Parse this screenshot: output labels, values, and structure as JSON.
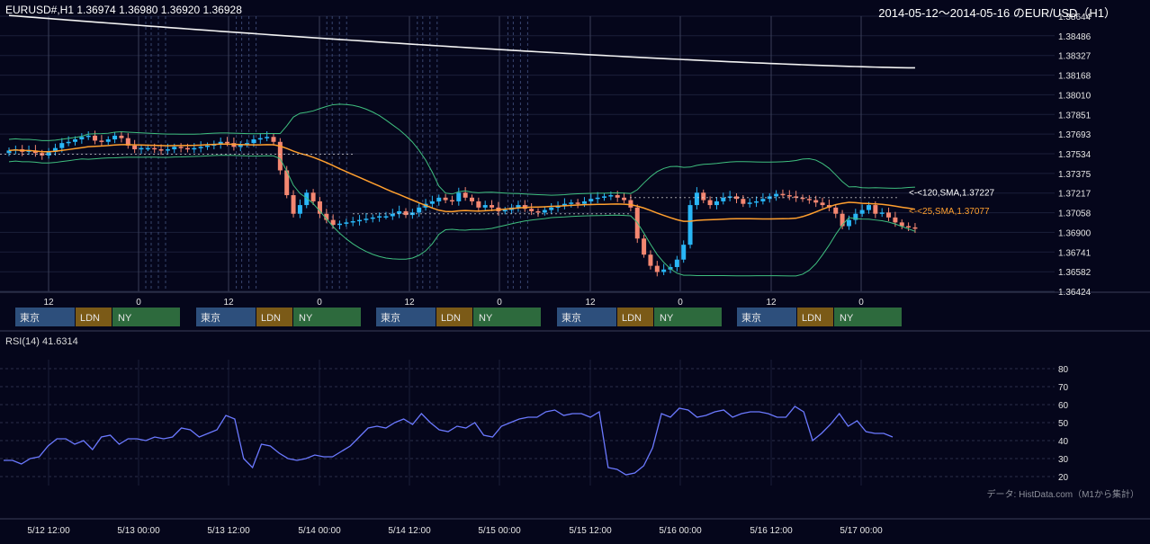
{
  "header": {
    "left": "EURUSD#,H1 1.36974 1.36980 1.36920 1.36928",
    "right": "2014-05-12～2014-05-16 のEUR/USD（H1）"
  },
  "rsi_label": "RSI(14) 41.6314",
  "credit": "データ: HistData.com（M1から集計）",
  "sessions": {
    "tokyo": "東京",
    "london": "LDN",
    "newyork": "NY"
  },
  "colors": {
    "background": "#05061b",
    "up_candle": "#29b6f6",
    "down_candle": "#f48771",
    "sma120": "#f2f2f2",
    "sma25": "#ff9f2e",
    "bollinger": "#3fbf7f",
    "rsi": "#6b79ff",
    "tokyo": "#2d4f7c",
    "london": "#7b5a17",
    "newyork": "#2d6a3d"
  },
  "chart_data": [
    {
      "type": "candlestick",
      "title": "2014-05-12～2014-05-16 のEUR/USD（H1）",
      "symbol": "EURUSD#,H1",
      "ohlc_last": [
        1.36974,
        1.3698,
        1.3692,
        1.36928
      ],
      "ylim": [
        1.36424,
        1.38644
      ],
      "y_ticks": [
        "1.38644",
        "1.38486",
        "1.38327",
        "1.38168",
        "1.38010",
        "1.37851",
        "1.37693",
        "1.37534",
        "1.37375",
        "1.37217",
        "1.37058",
        "1.36900",
        "1.36741",
        "1.36582",
        "1.36424"
      ],
      "x_tick_labels": [
        "12",
        "0",
        "12",
        "0",
        "12",
        "0",
        "12",
        "0",
        "12",
        "0"
      ],
      "closes": [
        1.3756,
        1.3757,
        1.3755,
        1.3756,
        1.3754,
        1.3752,
        1.3755,
        1.3758,
        1.3762,
        1.3763,
        1.3765,
        1.3767,
        1.3768,
        1.3764,
        1.3763,
        1.3765,
        1.3768,
        1.3766,
        1.376,
        1.3757,
        1.3758,
        1.3758,
        1.3757,
        1.3756,
        1.3757,
        1.3759,
        1.3758,
        1.3757,
        1.3758,
        1.3759,
        1.376,
        1.3761,
        1.3763,
        1.3762,
        1.3759,
        1.3761,
        1.3762,
        1.3765,
        1.3766,
        1.3767,
        1.3763,
        1.374,
        1.372,
        1.3705,
        1.3712,
        1.3722,
        1.3715,
        1.3705,
        1.37,
        1.3696,
        1.3697,
        1.3698,
        1.3699,
        1.37,
        1.3701,
        1.3702,
        1.3703,
        1.3703,
        1.3705,
        1.3707,
        1.3704,
        1.3706,
        1.371,
        1.3713,
        1.3715,
        1.3718,
        1.3716,
        1.3715,
        1.3722,
        1.3718,
        1.3715,
        1.371,
        1.3712,
        1.371,
        1.3707,
        1.3708,
        1.371,
        1.3712,
        1.3709,
        1.3707,
        1.3706,
        1.3708,
        1.371,
        1.3711,
        1.3713,
        1.3714,
        1.3713,
        1.3715,
        1.3717,
        1.3718,
        1.3719,
        1.372,
        1.3718,
        1.3716,
        1.371,
        1.3685,
        1.3672,
        1.3663,
        1.3658,
        1.366,
        1.3662,
        1.3668,
        1.368,
        1.3712,
        1.3722,
        1.3716,
        1.3712,
        1.3715,
        1.3718,
        1.3719,
        1.3717,
        1.3713,
        1.3714,
        1.3715,
        1.3717,
        1.3719,
        1.3721,
        1.372,
        1.3719,
        1.3718,
        1.3717,
        1.3716,
        1.3714,
        1.3712,
        1.371,
        1.3705,
        1.3695,
        1.37,
        1.3705,
        1.3708,
        1.3712,
        1.3705,
        1.3706,
        1.3702,
        1.3698,
        1.3695,
        1.3694,
        1.3693
      ],
      "sma120": {
        "label": "<-<120,SMA,1.37227",
        "last": 1.37227
      },
      "sma25": {
        "label": "<-<25,SMA,1.37077",
        "last": 1.37077
      }
    },
    {
      "type": "line",
      "title": "RSI(14) 41.6314",
      "ylim": [
        15,
        85
      ],
      "y_ticks": [
        20,
        30,
        40,
        50,
        60,
        70,
        80
      ],
      "x_tick_labels": [
        "5/12 12:00",
        "5/13 00:00",
        "5/13 12:00",
        "5/14 00:00",
        "5/14 12:00",
        "5/15 00:00",
        "5/15 12:00",
        "5/16 00:00",
        "5/16 12:00",
        "5/17 00:00"
      ],
      "series": [
        {
          "values": [
            29,
            29,
            27,
            30,
            31,
            37,
            41,
            41,
            38,
            40,
            35,
            42,
            43,
            38,
            41,
            41,
            40,
            42,
            41,
            42,
            47,
            46,
            42,
            44,
            46,
            54,
            52,
            30,
            25,
            38,
            37,
            33,
            30,
            29,
            30,
            32,
            31,
            31,
            34,
            37,
            42,
            47,
            48,
            47,
            50,
            52,
            49,
            55,
            50,
            46,
            45,
            48,
            47,
            50,
            43,
            42,
            48,
            50,
            52,
            53,
            53,
            56,
            57,
            54,
            55,
            55,
            53,
            56,
            25,
            24,
            21,
            22,
            26,
            36,
            55,
            53,
            58,
            57,
            53,
            54,
            56,
            57,
            53,
            55,
            56,
            56,
            55,
            53,
            53,
            59,
            56,
            40,
            44,
            49,
            55,
            48,
            51,
            45,
            44,
            44,
            42
          ]
        }
      ]
    }
  ]
}
